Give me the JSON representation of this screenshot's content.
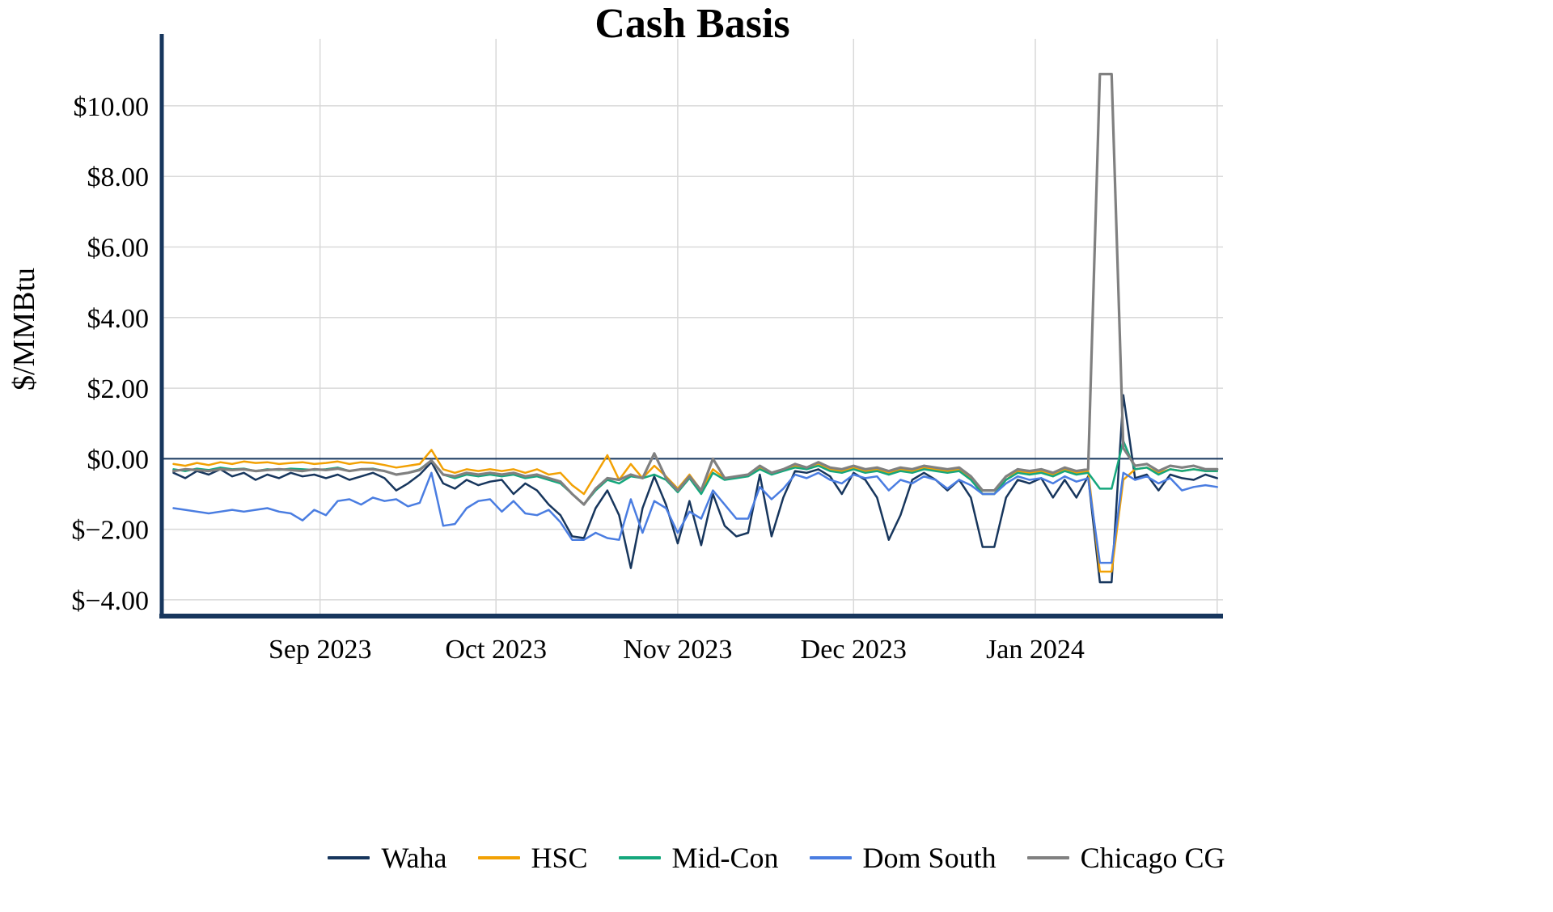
{
  "title": "Cash Basis",
  "chart_data": {
    "type": "line",
    "title": "Cash Basis",
    "xlabel": "",
    "ylabel": "$/MMBtu",
    "grid": true,
    "legend_position": "bottom",
    "x_domain": [
      "2023-08-05",
      "2024-02-02"
    ],
    "ylim": [
      -4.46,
      11.9
    ],
    "style": {
      "axis_color": "#17365D",
      "grid_color": "#D9D9D9",
      "zero_line_color": "#17365D"
    },
    "y_ticks": [
      {
        "value": 10,
        "label": "$10.00"
      },
      {
        "value": 8,
        "label": "$8.00"
      },
      {
        "value": 6,
        "label": "$6.00"
      },
      {
        "value": 4,
        "label": "$4.00"
      },
      {
        "value": 2,
        "label": "$2.00"
      },
      {
        "value": 0,
        "label": "$0.00"
      },
      {
        "value": -2,
        "label": "$−2.00"
      },
      {
        "value": -4,
        "label": "$−4.00"
      }
    ],
    "x_ticks": [
      {
        "value": "2023-09-01",
        "label": "Sep 2023"
      },
      {
        "value": "2023-10-01",
        "label": "Oct 2023"
      },
      {
        "value": "2023-11-01",
        "label": "Nov 2023"
      },
      {
        "value": "2023-12-01",
        "label": "Dec 2023"
      },
      {
        "value": "2024-01-01",
        "label": "Jan 2024"
      }
    ],
    "x_gridlines": [
      "2023-09-01",
      "2023-10-01",
      "2023-11-01",
      "2023-12-01",
      "2024-01-01",
      "2024-02-01"
    ],
    "dates": [
      "2023-08-07",
      "2023-08-09",
      "2023-08-11",
      "2023-08-13",
      "2023-08-15",
      "2023-08-17",
      "2023-08-19",
      "2023-08-21",
      "2023-08-23",
      "2023-08-25",
      "2023-08-27",
      "2023-08-29",
      "2023-08-31",
      "2023-09-02",
      "2023-09-04",
      "2023-09-06",
      "2023-09-08",
      "2023-09-10",
      "2023-09-12",
      "2023-09-14",
      "2023-09-16",
      "2023-09-18",
      "2023-09-20",
      "2023-09-22",
      "2023-09-24",
      "2023-09-26",
      "2023-09-28",
      "2023-09-30",
      "2023-10-02",
      "2023-10-04",
      "2023-10-06",
      "2023-10-08",
      "2023-10-10",
      "2023-10-12",
      "2023-10-14",
      "2023-10-16",
      "2023-10-18",
      "2023-10-20",
      "2023-10-22",
      "2023-10-24",
      "2023-10-26",
      "2023-10-28",
      "2023-10-30",
      "2023-11-01",
      "2023-11-03",
      "2023-11-05",
      "2023-11-07",
      "2023-11-09",
      "2023-11-11",
      "2023-11-13",
      "2023-11-15",
      "2023-11-17",
      "2023-11-19",
      "2023-11-21",
      "2023-11-23",
      "2023-11-25",
      "2023-11-27",
      "2023-11-29",
      "2023-12-01",
      "2023-12-03",
      "2023-12-05",
      "2023-12-07",
      "2023-12-09",
      "2023-12-11",
      "2023-12-13",
      "2023-12-15",
      "2023-12-17",
      "2023-12-19",
      "2023-12-21",
      "2023-12-23",
      "2023-12-25",
      "2023-12-27",
      "2023-12-29",
      "2023-12-31",
      "2024-01-02",
      "2024-01-04",
      "2024-01-06",
      "2024-01-08",
      "2024-01-10",
      "2024-01-12",
      "2024-01-14",
      "2024-01-16",
      "2024-01-18",
      "2024-01-20",
      "2024-01-22",
      "2024-01-24",
      "2024-01-26",
      "2024-01-28",
      "2024-01-30",
      "2024-02-01"
    ],
    "series": [
      {
        "name": "Waha",
        "color": "#17365D",
        "width": 2.5,
        "values": [
          -0.4,
          -0.55,
          -0.35,
          -0.45,
          -0.3,
          -0.5,
          -0.4,
          -0.6,
          -0.45,
          -0.55,
          -0.4,
          -0.5,
          -0.45,
          -0.55,
          -0.45,
          -0.6,
          -0.5,
          -0.4,
          -0.55,
          -0.9,
          -0.7,
          -0.45,
          -0.1,
          -0.7,
          -0.85,
          -0.6,
          -0.75,
          -0.65,
          -0.6,
          -1.0,
          -0.7,
          -0.9,
          -1.3,
          -1.6,
          -2.2,
          -2.25,
          -1.4,
          -0.9,
          -1.6,
          -3.1,
          -1.4,
          -0.5,
          -1.3,
          -2.4,
          -1.2,
          -2.45,
          -1.0,
          -1.9,
          -2.2,
          -2.1,
          -0.45,
          -2.2,
          -1.1,
          -0.35,
          -0.4,
          -0.3,
          -0.5,
          -1.0,
          -0.4,
          -0.6,
          -1.1,
          -2.3,
          -1.6,
          -0.6,
          -0.4,
          -0.6,
          -0.9,
          -0.6,
          -1.1,
          -2.5,
          -2.5,
          -1.1,
          -0.6,
          -0.7,
          -0.55,
          -1.1,
          -0.6,
          -1.1,
          -0.5,
          -3.5,
          -3.5,
          1.8,
          -0.55,
          -0.45,
          -0.9,
          -0.45,
          -0.55,
          -0.6,
          -0.45,
          -0.55
        ]
      },
      {
        "name": "HSC",
        "color": "#F2A104",
        "width": 2.5,
        "values": [
          -0.15,
          -0.2,
          -0.12,
          -0.18,
          -0.1,
          -0.15,
          -0.08,
          -0.12,
          -0.1,
          -0.15,
          -0.12,
          -0.1,
          -0.15,
          -0.12,
          -0.08,
          -0.15,
          -0.1,
          -0.12,
          -0.18,
          -0.25,
          -0.2,
          -0.15,
          0.25,
          -0.3,
          -0.4,
          -0.3,
          -0.35,
          -0.3,
          -0.35,
          -0.3,
          -0.4,
          -0.3,
          -0.45,
          -0.4,
          -0.75,
          -1.0,
          -0.45,
          0.1,
          -0.6,
          -0.15,
          -0.55,
          -0.2,
          -0.5,
          -0.85,
          -0.45,
          -0.9,
          -0.3,
          -0.55,
          -0.5,
          -0.45,
          -0.25,
          -0.4,
          -0.3,
          -0.2,
          -0.25,
          -0.15,
          -0.3,
          -0.35,
          -0.25,
          -0.35,
          -0.3,
          -0.4,
          -0.3,
          -0.35,
          -0.25,
          -0.3,
          -0.35,
          -0.3,
          -0.55,
          -1.0,
          -1.0,
          -0.6,
          -0.35,
          -0.4,
          -0.35,
          -0.45,
          -0.3,
          -0.4,
          -0.35,
          -3.2,
          -3.2,
          -0.6,
          -0.3,
          -0.25,
          -0.4,
          -0.3,
          -0.35,
          -0.3,
          -0.35,
          -0.35
        ]
      },
      {
        "name": "Mid-Con",
        "color": "#15A77C",
        "width": 2.5,
        "values": [
          -0.3,
          -0.35,
          -0.28,
          -0.32,
          -0.25,
          -0.3,
          -0.28,
          -0.35,
          -0.3,
          -0.32,
          -0.28,
          -0.3,
          -0.32,
          -0.3,
          -0.25,
          -0.35,
          -0.3,
          -0.28,
          -0.35,
          -0.45,
          -0.4,
          -0.3,
          -0.05,
          -0.45,
          -0.55,
          -0.45,
          -0.5,
          -0.45,
          -0.5,
          -0.45,
          -0.55,
          -0.5,
          -0.6,
          -0.7,
          -1.0,
          -1.3,
          -0.9,
          -0.6,
          -0.7,
          -0.5,
          -0.55,
          -0.45,
          -0.6,
          -0.95,
          -0.55,
          -1.0,
          -0.4,
          -0.6,
          -0.55,
          -0.5,
          -0.3,
          -0.45,
          -0.35,
          -0.25,
          -0.3,
          -0.2,
          -0.35,
          -0.4,
          -0.3,
          -0.4,
          -0.35,
          -0.45,
          -0.35,
          -0.4,
          -0.3,
          -0.35,
          -0.4,
          -0.35,
          -0.6,
          -1.0,
          -1.0,
          -0.6,
          -0.4,
          -0.45,
          -0.4,
          -0.5,
          -0.35,
          -0.45,
          -0.4,
          -0.85,
          -0.85,
          0.5,
          -0.3,
          -0.25,
          -0.45,
          -0.3,
          -0.35,
          -0.3,
          -0.35,
          -0.35
        ]
      },
      {
        "name": "Dom South",
        "color": "#4A7DE1",
        "width": 2.5,
        "values": [
          -1.4,
          -1.45,
          -1.5,
          -1.55,
          -1.5,
          -1.45,
          -1.5,
          -1.45,
          -1.4,
          -1.5,
          -1.55,
          -1.75,
          -1.45,
          -1.6,
          -1.2,
          -1.15,
          -1.3,
          -1.1,
          -1.2,
          -1.15,
          -1.35,
          -1.25,
          -0.4,
          -1.9,
          -1.85,
          -1.4,
          -1.2,
          -1.15,
          -1.5,
          -1.2,
          -1.55,
          -1.6,
          -1.45,
          -1.8,
          -2.3,
          -2.3,
          -2.1,
          -2.25,
          -2.3,
          -1.15,
          -2.1,
          -1.2,
          -1.4,
          -2.1,
          -1.5,
          -1.7,
          -0.9,
          -1.3,
          -1.7,
          -1.7,
          -0.8,
          -1.15,
          -0.85,
          -0.45,
          -0.55,
          -0.4,
          -0.6,
          -0.7,
          -0.45,
          -0.55,
          -0.5,
          -0.9,
          -0.6,
          -0.7,
          -0.5,
          -0.6,
          -0.85,
          -0.6,
          -0.75,
          -1.0,
          -1.0,
          -0.7,
          -0.5,
          -0.6,
          -0.55,
          -0.7,
          -0.5,
          -0.65,
          -0.55,
          -2.95,
          -2.95,
          -0.4,
          -0.6,
          -0.5,
          -0.7,
          -0.55,
          -0.9,
          -0.8,
          -0.75,
          -0.8
        ]
      },
      {
        "name": "Chicago CG",
        "color": "#808080",
        "width": 3.2,
        "values": [
          -0.35,
          -0.3,
          -0.32,
          -0.35,
          -0.3,
          -0.32,
          -0.3,
          -0.35,
          -0.32,
          -0.3,
          -0.32,
          -0.35,
          -0.3,
          -0.32,
          -0.28,
          -0.35,
          -0.3,
          -0.3,
          -0.35,
          -0.45,
          -0.4,
          -0.32,
          -0.05,
          -0.45,
          -0.5,
          -0.4,
          -0.45,
          -0.4,
          -0.45,
          -0.4,
          -0.5,
          -0.45,
          -0.55,
          -0.65,
          -1.0,
          -1.3,
          -0.85,
          -0.55,
          -0.6,
          -0.45,
          -0.55,
          0.15,
          -0.55,
          -0.9,
          -0.5,
          -0.9,
          0.0,
          -0.55,
          -0.5,
          -0.45,
          -0.2,
          -0.4,
          -0.3,
          -0.15,
          -0.25,
          -0.1,
          -0.25,
          -0.3,
          -0.2,
          -0.3,
          -0.25,
          -0.35,
          -0.25,
          -0.3,
          -0.2,
          -0.25,
          -0.3,
          -0.25,
          -0.5,
          -0.9,
          -0.9,
          -0.5,
          -0.3,
          -0.35,
          -0.3,
          -0.4,
          -0.25,
          -0.35,
          -0.3,
          10.9,
          10.9,
          0.3,
          -0.2,
          -0.15,
          -0.35,
          -0.2,
          -0.25,
          -0.2,
          -0.3,
          -0.3
        ]
      }
    ]
  }
}
